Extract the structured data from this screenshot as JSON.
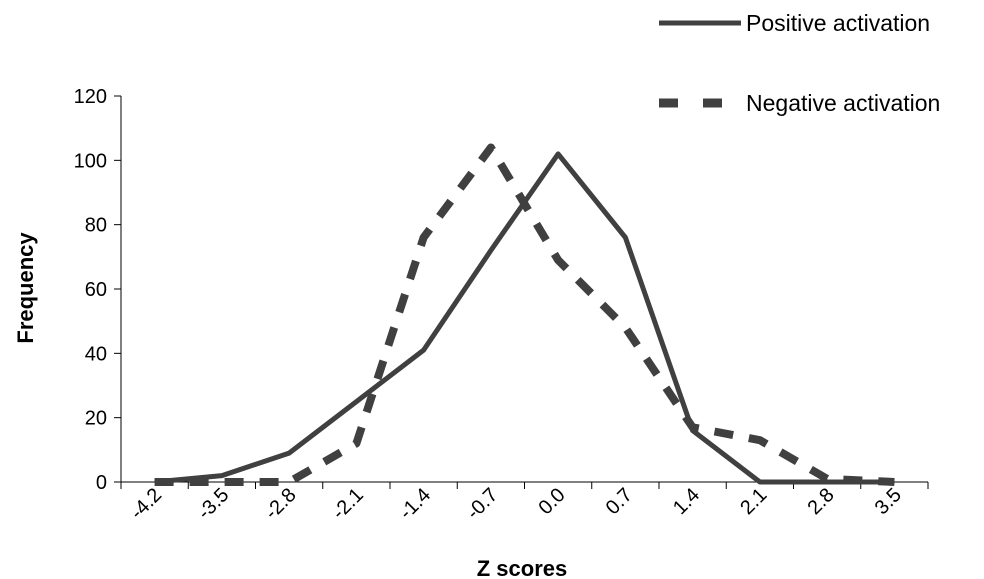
{
  "chart_data": {
    "type": "line",
    "title": "",
    "xlabel": "Z scores",
    "ylabel": "Frequency",
    "ylim": [
      0,
      120
    ],
    "yticks": [
      "0",
      "20",
      "40",
      "60",
      "80",
      "100",
      "120"
    ],
    "x": [
      "-4.2",
      "-3.5",
      "-2.8",
      "-2.1",
      "-1.4",
      "-0.7",
      "0.0",
      "0.7",
      "1.4",
      "2.1",
      "2.8",
      "3.5"
    ],
    "series": [
      {
        "name": "Positive activation",
        "style": "solid",
        "color": "#404040",
        "values": [
          0,
          2,
          9,
          25,
          41,
          72,
          102,
          76,
          16,
          0,
          0,
          0
        ]
      },
      {
        "name": "Negative activation",
        "style": "dashed",
        "color": "#404040",
        "values": [
          0,
          0,
          0,
          12,
          76,
          104,
          69,
          48,
          17,
          13,
          1,
          0
        ]
      }
    ],
    "legend": "top-right",
    "grid": false
  }
}
